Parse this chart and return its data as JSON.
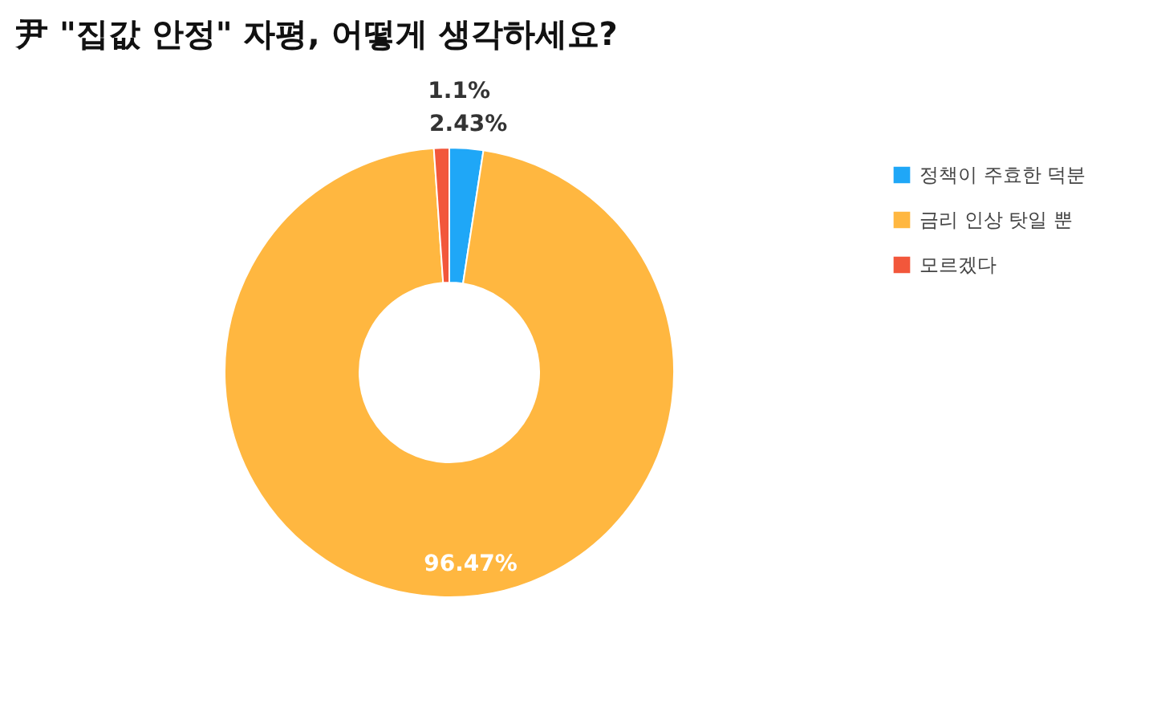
{
  "chart_data": {
    "type": "donut",
    "title": "尹 \"집값 안정\" 자평, 어떻게 생각하세요?",
    "categories": [
      "정책이 주효한 덕분",
      "금리 인상 탓일 뿐",
      "모르겠다"
    ],
    "values": [
      2.43,
      96.47,
      1.1
    ],
    "colors": [
      "#1fa7f7",
      "#ffb740",
      "#f2573b"
    ],
    "value_labels": [
      "2.43%",
      "96.47%",
      "1.1%"
    ],
    "legend": "top right"
  }
}
